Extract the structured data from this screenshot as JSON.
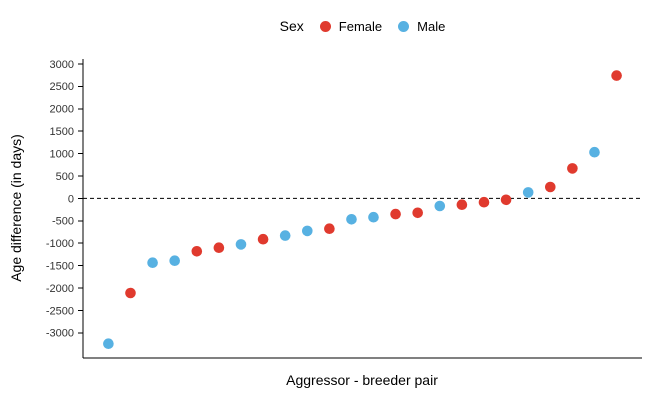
{
  "figure": {
    "background": "#ffffff"
  },
  "chart_data": {
    "type": "scatter",
    "title": "",
    "xlabel": "Aggressor - breeder pair",
    "ylabel": "Age difference (in days)",
    "grid": false,
    "legend": {
      "title": "Sex",
      "position": "top",
      "items": [
        {
          "label": "Female",
          "color": "#E03A2E"
        },
        {
          "label": "Male",
          "color": "#57B1E2"
        }
      ]
    },
    "colors": {
      "Female": "#E03A2E",
      "Male": "#57B1E2"
    },
    "axis_color": "#000000",
    "tick_label_color": "#333333",
    "yticks": [
      3000,
      2500,
      2000,
      1500,
      1000,
      500,
      0,
      -500,
      -1000,
      -1500,
      -2000,
      -2500,
      -3000
    ],
    "ylim": [
      -3560,
      3110
    ],
    "xlim": [
      -0.15,
      25.15
    ],
    "reference_line": {
      "y": 0,
      "linetype": "dashed",
      "color": "#000000"
    },
    "points": [
      {
        "pair": 1,
        "sex": "Male",
        "value": -3240
      },
      {
        "pair": 2,
        "sex": "Female",
        "value": -2110
      },
      {
        "pair": 3,
        "sex": "Male",
        "value": -1435
      },
      {
        "pair": 4,
        "sex": "Male",
        "value": -1390
      },
      {
        "pair": 5,
        "sex": "Female",
        "value": -1180
      },
      {
        "pair": 6,
        "sex": "Female",
        "value": -1100
      },
      {
        "pair": 7,
        "sex": "Male",
        "value": -1025
      },
      {
        "pair": 8,
        "sex": "Female",
        "value": -910
      },
      {
        "pair": 9,
        "sex": "Male",
        "value": -830
      },
      {
        "pair": 10,
        "sex": "Male",
        "value": -725
      },
      {
        "pair": 11,
        "sex": "Female",
        "value": -675
      },
      {
        "pair": 12,
        "sex": "Male",
        "value": -465
      },
      {
        "pair": 13,
        "sex": "Male",
        "value": -420
      },
      {
        "pair": 14,
        "sex": "Female",
        "value": -350
      },
      {
        "pair": 15,
        "sex": "Female",
        "value": -320
      },
      {
        "pair": 16,
        "sex": "Male",
        "value": -170
      },
      {
        "pair": 17,
        "sex": "Female",
        "value": -140
      },
      {
        "pair": 18,
        "sex": "Female",
        "value": -85
      },
      {
        "pair": 19,
        "sex": "Female",
        "value": -30
      },
      {
        "pair": 20,
        "sex": "Male",
        "value": 135
      },
      {
        "pair": 21,
        "sex": "Female",
        "value": 255
      },
      {
        "pair": 22,
        "sex": "Female",
        "value": 670
      },
      {
        "pair": 23,
        "sex": "Male",
        "value": 1030
      },
      {
        "pair": 24,
        "sex": "Female",
        "value": 2740
      }
    ]
  }
}
